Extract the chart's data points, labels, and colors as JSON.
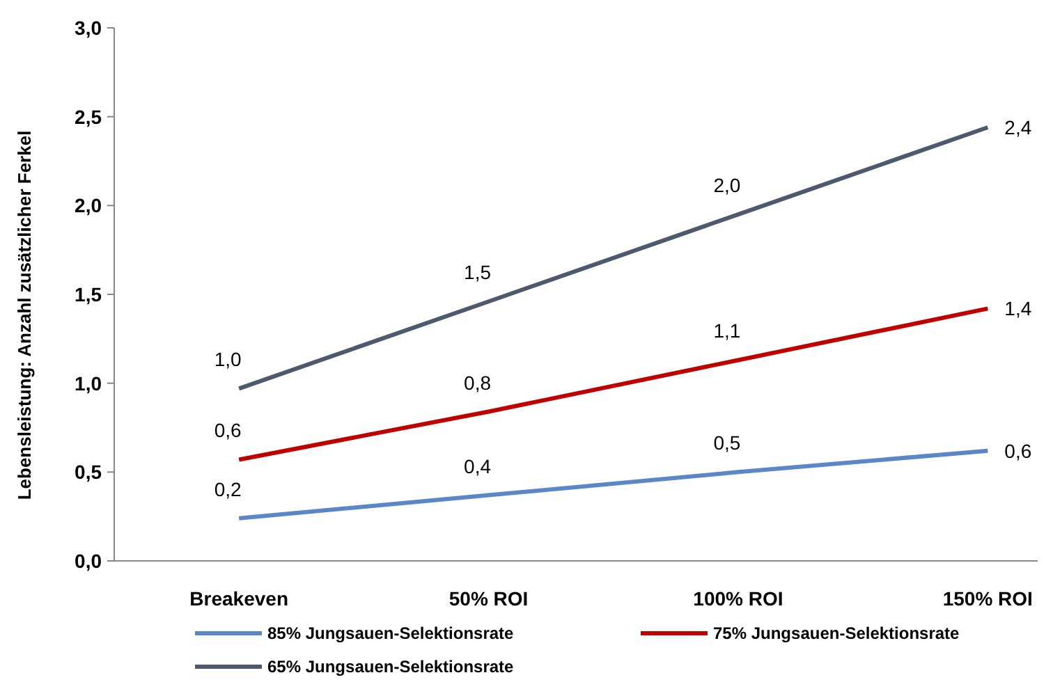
{
  "chart_data": {
    "type": "line",
    "ylabel": "Lebensleistung: Anzahl zusätzlicher Ferkel",
    "categories": [
      "Breakeven",
      "50% ROI",
      "100% ROI",
      "150% ROI"
    ],
    "series": [
      {
        "name": "85% Jungsauen-Selektionsrate",
        "color": "#5b87c9",
        "values": [
          0.24,
          0.37,
          0.5,
          0.62
        ],
        "value_labels": [
          "0,2",
          "0,4",
          "0,5",
          "0,6"
        ]
      },
      {
        "name": "75% Jungsauen-Selektionsrate",
        "color": "#c00000",
        "values": [
          0.57,
          0.84,
          1.13,
          1.42
        ],
        "value_labels": [
          "0,6",
          "0,8",
          "1,1",
          "1,4"
        ]
      },
      {
        "name": "65% Jungsauen-Selektionsrate",
        "color": "#4d5a6e",
        "values": [
          0.97,
          1.46,
          1.95,
          2.44
        ],
        "value_labels": [
          "1,0",
          "1,5",
          "2,0",
          "2,4"
        ]
      }
    ],
    "ylim": [
      0,
      3
    ],
    "yticks": [
      {
        "value": 0,
        "label": "0,0"
      },
      {
        "value": 0.5,
        "label": "0,5"
      },
      {
        "value": 1,
        "label": "1,0"
      },
      {
        "value": 1.5,
        "label": "1,5"
      },
      {
        "value": 2,
        "label": "2,0"
      },
      {
        "value": 2.5,
        "label": "2,5"
      },
      {
        "value": 3,
        "label": "3,0"
      }
    ],
    "grid": false,
    "legend": "bottom",
    "marker": "none",
    "line_style": "solid"
  }
}
